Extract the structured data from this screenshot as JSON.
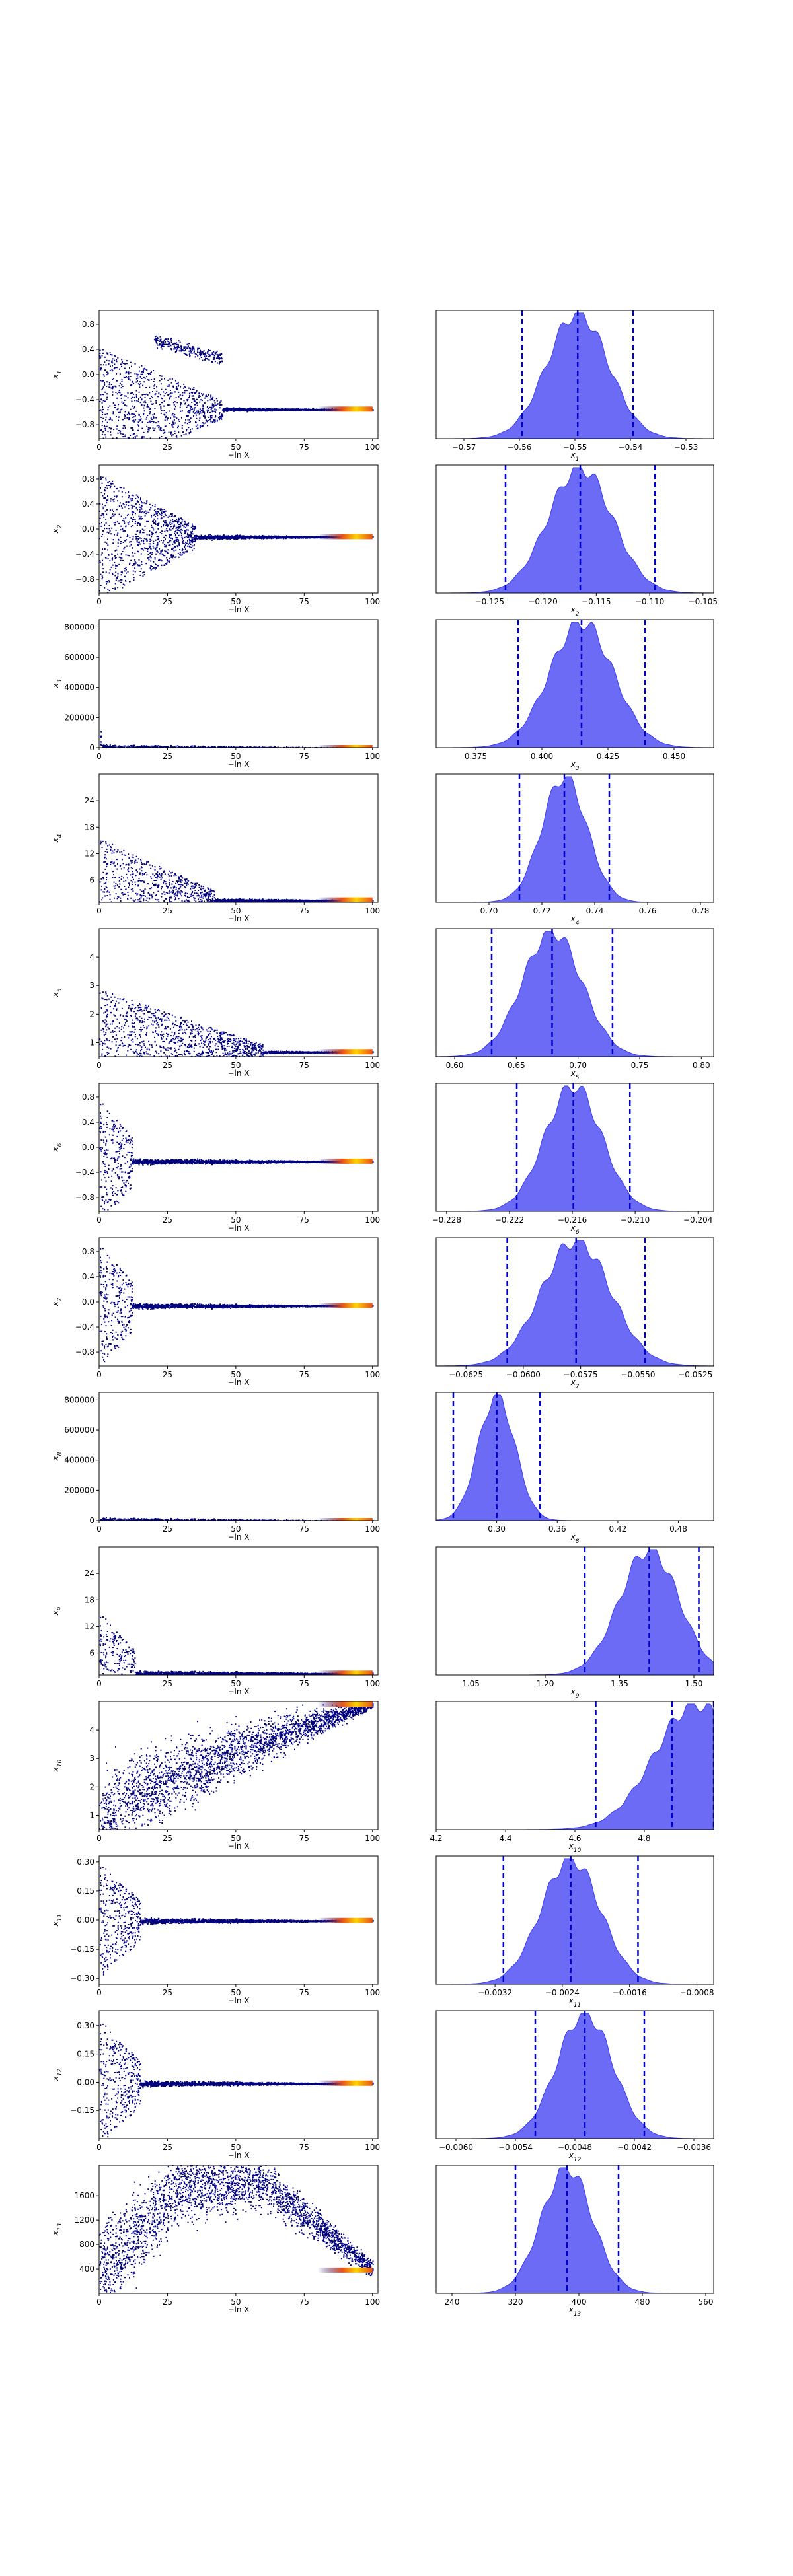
{
  "chart_data": [
    {
      "type": "scatter",
      "xlabel": "−ln X",
      "ylabel": "x1",
      "xlim": [
        0,
        102
      ],
      "ylim": [
        -1.02,
        1.02
      ],
      "xticks": [
        0,
        25,
        50,
        75,
        100
      ],
      "yticks": [
        -0.8,
        -0.4,
        0.0,
        0.4,
        0.8
      ],
      "yticklabels": [
        "−0.8",
        "−0.4",
        "0.0",
        "0.4",
        "0.8"
      ],
      "trace": {
        "converge_at": -0.55,
        "early_lo": -1.0,
        "early_hi": 1.0,
        "noise_end": 45,
        "branch_lo": -0.55,
        "branch_hi": 0.55,
        "branch_end": 45
      }
    },
    {
      "type": "area",
      "xlabel": "x1",
      "xlim": [
        -0.575,
        -0.525
      ],
      "xticks": [
        -0.57,
        -0.56,
        -0.55,
        -0.54,
        -0.53
      ],
      "xticklabels": [
        "−0.57",
        "−0.56",
        "−0.55",
        "−0.54",
        "−0.53"
      ],
      "quantiles": [
        -0.5595,
        -0.5495,
        -0.5395
      ],
      "density_center": -0.5495,
      "density_width": 0.0055
    },
    {
      "type": "scatter",
      "xlabel": "−ln X",
      "ylabel": "x2",
      "xlim": [
        0,
        102
      ],
      "ylim": [
        -1.02,
        1.02
      ],
      "xticks": [
        0,
        25,
        50,
        75,
        100
      ],
      "yticks": [
        -0.8,
        -0.4,
        0.0,
        0.4,
        0.8
      ],
      "yticklabels": [
        "−0.8",
        "−0.4",
        "0.0",
        "0.4",
        "0.8"
      ],
      "trace": {
        "converge_at": -0.12,
        "early_lo": -1.0,
        "early_hi": 1.0,
        "noise_end": 35
      }
    },
    {
      "type": "area",
      "xlabel": "x2",
      "xlim": [
        -0.13,
        -0.104
      ],
      "xticks": [
        -0.125,
        -0.12,
        -0.115,
        -0.11,
        -0.105
      ],
      "xticklabels": [
        "−0.125",
        "−0.120",
        "−0.115",
        "−0.110",
        "−0.105"
      ],
      "quantiles": [
        -0.1235,
        -0.1165,
        -0.1095
      ],
      "density_center": -0.1165,
      "density_width": 0.003
    },
    {
      "type": "scatter",
      "xlabel": "−ln X",
      "ylabel": "x3",
      "xlim": [
        0,
        102
      ],
      "ylim": [
        0,
        850000
      ],
      "xticks": [
        0,
        25,
        50,
        75,
        100
      ],
      "yticks": [
        0,
        200000,
        400000,
        600000,
        800000
      ],
      "yticklabels": [
        "0",
        "200000",
        "400000",
        "600000",
        "800000"
      ],
      "trace": {
        "converge_at": 0.4,
        "early_lo": 0,
        "early_hi": 250000,
        "noise_end": 1
      }
    },
    {
      "type": "area",
      "xlabel": "x3",
      "xlim": [
        0.36,
        0.465
      ],
      "xticks": [
        0.375,
        0.4,
        0.425,
        0.45
      ],
      "xticklabels": [
        "0.375",
        "0.400",
        "0.425",
        "0.450"
      ],
      "quantiles": [
        0.391,
        0.415,
        0.439
      ],
      "density_center": 0.415,
      "density_width": 0.012
    },
    {
      "type": "scatter",
      "xlabel": "−ln X",
      "ylabel": "x4",
      "xlim": [
        0,
        102
      ],
      "ylim": [
        1,
        30
      ],
      "xticks": [
        0,
        25,
        50,
        75,
        100
      ],
      "yticks": [
        6,
        12,
        18,
        24
      ],
      "yticklabels": [
        "6",
        "12",
        "18",
        "24"
      ],
      "trace": {
        "converge_at": 1.5,
        "early_lo": 1,
        "early_hi": 29,
        "noise_end": 42
      }
    },
    {
      "type": "area",
      "xlabel": "x4",
      "xlim": [
        0.68,
        0.785
      ],
      "xticks": [
        0.7,
        0.72,
        0.74,
        0.76,
        0.78
      ],
      "xticklabels": [
        "0.70",
        "0.72",
        "0.74",
        "0.76",
        "0.78"
      ],
      "quantiles": [
        0.7115,
        0.7285,
        0.7455
      ],
      "density_center": 0.7285,
      "density_width": 0.0085
    },
    {
      "type": "scatter",
      "xlabel": "−ln X",
      "ylabel": "x5",
      "xlim": [
        0,
        102
      ],
      "ylim": [
        0.5,
        5.0
      ],
      "xticks": [
        0,
        25,
        50,
        75,
        100
      ],
      "yticks": [
        1,
        2,
        3,
        4
      ],
      "yticklabels": [
        "1",
        "2",
        "3",
        "4"
      ],
      "trace": {
        "converge_at": 0.68,
        "early_lo": 0.6,
        "early_hi": 5.0,
        "noise_end": 60
      }
    },
    {
      "type": "area",
      "xlabel": "x5",
      "xlim": [
        0.585,
        0.81
      ],
      "xticks": [
        0.6,
        0.65,
        0.7,
        0.75,
        0.8
      ],
      "xticklabels": [
        "0.60",
        "0.65",
        "0.70",
        "0.75",
        "0.80"
      ],
      "quantiles": [
        0.63,
        0.679,
        0.728
      ],
      "density_center": 0.679,
      "density_width": 0.024
    },
    {
      "type": "scatter",
      "xlabel": "−ln X",
      "ylabel": "x6",
      "xlim": [
        0,
        102
      ],
      "ylim": [
        -1.02,
        1.02
      ],
      "xticks": [
        0,
        25,
        50,
        75,
        100
      ],
      "yticks": [
        -0.8,
        -0.4,
        0.0,
        0.4,
        0.8
      ],
      "yticklabels": [
        "−0.8",
        "−0.4",
        "0.0",
        "0.4",
        "0.8"
      ],
      "trace": {
        "converge_at": -0.22,
        "early_lo": -1.0,
        "early_hi": 1.0,
        "noise_end": 12
      }
    },
    {
      "type": "area",
      "xlabel": "x6",
      "xlim": [
        -0.229,
        -0.2025
      ],
      "xticks": [
        -0.228,
        -0.222,
        -0.216,
        -0.21,
        -0.204
      ],
      "xticklabels": [
        "−0.228",
        "−0.222",
        "−0.216",
        "−0.210",
        "−0.204"
      ],
      "quantiles": [
        -0.2213,
        -0.2159,
        -0.2105
      ],
      "density_center": -0.2159,
      "density_width": 0.0027
    },
    {
      "type": "scatter",
      "xlabel": "−ln X",
      "ylabel": "x7",
      "xlim": [
        0,
        102
      ],
      "ylim": [
        -1.02,
        1.02
      ],
      "xticks": [
        0,
        25,
        50,
        75,
        100
      ],
      "yticks": [
        -0.8,
        -0.4,
        0.0,
        0.4,
        0.8
      ],
      "yticklabels": [
        "−0.8",
        "−0.4",
        "0.0",
        "0.4",
        "0.8"
      ],
      "trace": {
        "converge_at": -0.058,
        "early_lo": -1.0,
        "early_hi": 1.0,
        "noise_end": 12
      }
    },
    {
      "type": "area",
      "xlabel": "x7",
      "xlim": [
        -0.0638,
        -0.0517
      ],
      "xticks": [
        -0.0625,
        -0.06,
        -0.0575,
        -0.055,
        -0.0525
      ],
      "xticklabels": [
        "−0.0625",
        "−0.0600",
        "−0.0575",
        "−0.0550",
        "−0.0525"
      ],
      "quantiles": [
        -0.0607,
        -0.0577,
        -0.0547
      ],
      "density_center": -0.0577,
      "density_width": 0.0015
    },
    {
      "type": "scatter",
      "xlabel": "−ln X",
      "ylabel": "x8",
      "xlim": [
        0,
        102
      ],
      "ylim": [
        0,
        850000
      ],
      "xticks": [
        0,
        25,
        50,
        75,
        100
      ],
      "yticks": [
        0,
        200000,
        400000,
        600000,
        800000
      ],
      "yticklabels": [
        "0",
        "200000",
        "400000",
        "600000",
        "800000"
      ],
      "trace": {
        "converge_at": 0.3,
        "early_lo": 0,
        "early_hi": 25000,
        "noise_end": 1
      }
    },
    {
      "type": "area",
      "xlabel": "x8",
      "xlim": [
        0.24,
        0.515
      ],
      "xticks": [
        0.3,
        0.36,
        0.42,
        0.48
      ],
      "xticklabels": [
        "0.30",
        "0.36",
        "0.42",
        "0.48"
      ],
      "quantiles": [
        0.257,
        0.3,
        0.343
      ],
      "density_center": 0.3,
      "density_width": 0.018
    },
    {
      "type": "scatter",
      "xlabel": "−ln X",
      "ylabel": "x9",
      "xlim": [
        0,
        102
      ],
      "ylim": [
        1,
        30
      ],
      "xticks": [
        0,
        25,
        50,
        75,
        100
      ],
      "yticks": [
        6,
        12,
        18,
        24
      ],
      "yticklabels": [
        "6",
        "12",
        "18",
        "24"
      ],
      "trace": {
        "converge_at": 1.4,
        "early_lo": 1,
        "early_hi": 29,
        "noise_end": 13
      }
    },
    {
      "type": "area",
      "xlabel": "x9",
      "xlim": [
        0.98,
        1.54
      ],
      "xticks": [
        1.05,
        1.2,
        1.35,
        1.5
      ],
      "xticklabels": [
        "1.05",
        "1.20",
        "1.35",
        "1.50"
      ],
      "quantiles": [
        1.28,
        1.41,
        1.51
      ],
      "density_center": 1.41,
      "density_width": 0.06
    },
    {
      "type": "scatter",
      "xlabel": "−ln X",
      "ylabel": "x10",
      "xlim": [
        0,
        102
      ],
      "ylim": [
        0.5,
        5.0
      ],
      "xticks": [
        0,
        25,
        50,
        75,
        100
      ],
      "yticks": [
        1,
        2,
        3,
        4
      ],
      "yticklabels": [
        "1",
        "2",
        "3",
        "4"
      ],
      "trace": {
        "converge_at": 4.9,
        "early_lo": 0.6,
        "early_hi": 5.0,
        "noise_end": 100,
        "rising": true
      }
    },
    {
      "type": "area",
      "xlabel": "x10",
      "xlim": [
        4.2,
        5.0
      ],
      "xticks": [
        4.2,
        4.4,
        4.6,
        4.8
      ],
      "xticklabels": [
        "4.2",
        "4.4",
        "4.6",
        "4.8"
      ],
      "quantiles": [
        4.66,
        4.88,
        5.0
      ],
      "density_center": 4.95,
      "density_width": 0.12
    },
    {
      "type": "scatter",
      "xlabel": "−ln X",
      "ylabel": "x11",
      "xlim": [
        0,
        102
      ],
      "ylim": [
        -0.33,
        0.33
      ],
      "xticks": [
        0,
        25,
        50,
        75,
        100
      ],
      "yticks": [
        -0.3,
        -0.15,
        0.0,
        0.15,
        0.3
      ],
      "yticklabels": [
        "−0.30",
        "−0.15",
        "0.00",
        "0.15",
        "0.30"
      ],
      "trace": {
        "converge_at": -0.0024,
        "early_lo": -0.3,
        "early_hi": 0.3,
        "noise_end": 15
      }
    },
    {
      "type": "area",
      "xlabel": "x11",
      "xlim": [
        -0.0039,
        -0.0006
      ],
      "xticks": [
        -0.0032,
        -0.0024,
        -0.0016,
        -0.0008
      ],
      "xticklabels": [
        "−0.0032",
        "−0.0024",
        "−0.0016",
        "−0.0008"
      ],
      "quantiles": [
        -0.0031,
        -0.0023,
        -0.0015
      ],
      "density_center": -0.0023,
      "density_width": 0.00035
    },
    {
      "type": "scatter",
      "xlabel": "−ln X",
      "ylabel": "x12",
      "xlim": [
        0,
        102
      ],
      "ylim": [
        -0.3,
        0.38
      ],
      "xticks": [
        0,
        25,
        50,
        75,
        100
      ],
      "yticks": [
        -0.15,
        0.0,
        0.15,
        0.3
      ],
      "yticklabels": [
        "−0.15",
        "0.00",
        "0.15",
        "0.30"
      ],
      "trace": {
        "converge_at": -0.0047,
        "early_lo": -0.3,
        "early_hi": 0.38,
        "noise_end": 15
      }
    },
    {
      "type": "area",
      "xlabel": "x12",
      "xlim": [
        -0.0062,
        -0.0034
      ],
      "xticks": [
        -0.006,
        -0.0054,
        -0.0048,
        -0.0042,
        -0.0036
      ],
      "xticklabels": [
        "−0.0060",
        "−0.0054",
        "−0.0048",
        "−0.0042",
        "−0.0036"
      ],
      "quantiles": [
        -0.0052,
        -0.0047,
        -0.0041
      ],
      "density_center": -0.0047,
      "density_width": 0.00028
    },
    {
      "type": "scatter",
      "xlabel": "−ln X",
      "ylabel": "x13",
      "xlim": [
        0,
        102
      ],
      "ylim": [
        0,
        2100
      ],
      "xticks": [
        0,
        25,
        50,
        75,
        100
      ],
      "yticks": [
        400,
        800,
        1200,
        1600
      ],
      "yticklabels": [
        "400",
        "800",
        "1200",
        "1600"
      ],
      "trace": {
        "converge_at": 380,
        "early_lo": 0,
        "early_hi": 2100,
        "noise_end": 100,
        "hump": true
      }
    },
    {
      "type": "area",
      "xlabel": "x13",
      "xlim": [
        220,
        570
      ],
      "xticks": [
        240,
        320,
        400,
        480,
        560
      ],
      "xticklabels": [
        "240",
        "320",
        "400",
        "480",
        "560"
      ],
      "quantiles": [
        320,
        385,
        450
      ],
      "density_center": 385,
      "density_width": 32
    }
  ],
  "colors": {
    "scatter": "#00007f",
    "hot": "#ffd200",
    "hot_mid": "#e8521a",
    "kde_fill": "#5b5bf5",
    "kde_edge": "#3b3bea",
    "quantile_line": "#0000cc",
    "axes": "#000000",
    "text": "#000000"
  }
}
